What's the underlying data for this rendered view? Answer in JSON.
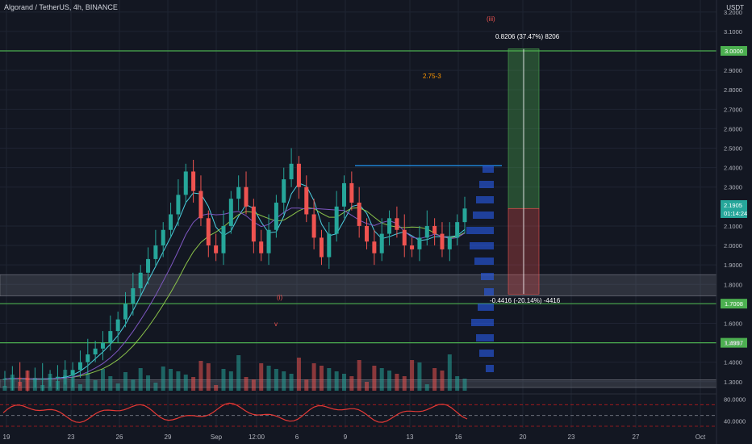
{
  "header": {
    "title": "Algorand / TetherUS, 4h, BINANCE",
    "currency": "USDT"
  },
  "colors": {
    "background": "#131722",
    "grid": "#1f2433",
    "up": "#26a69a",
    "down": "#ef5350",
    "level_line": "#4caf50",
    "level_label_bg": "#4caf50",
    "price_label_bg": "#26a69a",
    "rsi": "#e53935",
    "target_box": "rgba(76,175,80,0.35)",
    "stop_box": "rgba(239,83,80,0.30)",
    "zone_box": "rgba(120,123,134,0.28)"
  },
  "annotations": {
    "wave_iii": "(iii)",
    "wave_i": "(i)",
    "wave_v": "v",
    "target_note": "2.75-3",
    "target_measure": "0.8206 (37.47%) 8206",
    "stop_measure": "-0.4416 (-20.14%) -4416"
  },
  "price_label": {
    "value": "2.1905",
    "countdown": "01:14:24"
  },
  "rsi_axis": {
    "labels": [
      "80.0000",
      "40.0000"
    ],
    "top": 80,
    "bottom": 40
  },
  "chart_data": {
    "type": "candlestick",
    "symbol": "ALGOUSDT",
    "interval": "4h",
    "exchange": "BINANCE",
    "y_axis_labels": [
      "3.2000",
      "3.1000",
      "2.9000",
      "2.8000",
      "2.7000",
      "2.6000",
      "2.5000",
      "2.4000",
      "2.3000",
      "2.1000",
      "2.0000",
      "1.9000",
      "1.8000",
      "1.6000",
      "1.5000",
      "1.4000",
      "1.3000"
    ],
    "y_range": [
      1.27,
      3.22
    ],
    "x_tick_labels": [
      "19",
      "23",
      "26",
      "29",
      "Sep",
      "12:00",
      "6",
      "9",
      "13",
      "16",
      "20",
      "23",
      "27",
      "Oct"
    ],
    "horizontal_levels": [
      {
        "price": 3.0,
        "label": "3.0000"
      },
      {
        "price": 1.7008,
        "label": "1.7008"
      },
      {
        "price": 1.4997,
        "label": "1.4997"
      }
    ],
    "zones": [
      {
        "from": 1.74,
        "to": 1.85
      },
      {
        "from": 1.27,
        "to": 1.31
      }
    ],
    "resistance_line": {
      "price": 2.41
    },
    "position": {
      "entry": 2.19,
      "target": 3.01,
      "stop": 1.75
    },
    "candles_close": [
      1.315,
      1.32,
      1.318,
      1.31,
      1.312,
      1.315,
      1.32,
      1.325,
      1.33,
      1.36,
      1.4,
      1.44,
      1.47,
      1.5,
      1.56,
      1.62,
      1.7,
      1.78,
      1.86,
      1.93,
      2.0,
      2.08,
      2.16,
      2.26,
      2.38,
      2.28,
      2.14,
      2.0,
      1.96,
      2.1,
      2.24,
      2.3,
      2.2,
      2.02,
      1.96,
      2.08,
      2.22,
      2.34,
      2.42,
      2.3,
      2.16,
      2.04,
      1.94,
      2.06,
      2.2,
      2.32,
      2.22,
      2.1,
      2.02,
      1.96,
      2.06,
      2.14,
      2.08,
      2.0,
      1.98,
      2.04,
      2.1,
      2.06,
      1.98,
      2.04,
      2.12,
      2.19
    ]
  }
}
